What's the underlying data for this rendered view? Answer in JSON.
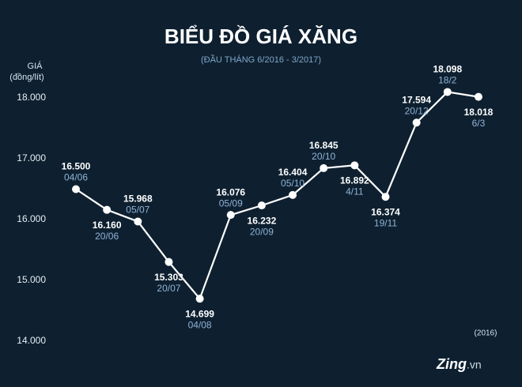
{
  "chart_data": {
    "type": "line",
    "title": "BIỂU ĐỒ GIÁ XĂNG",
    "subtitle": "(ĐẦU THÁNG 6/2016 - 3/2017)",
    "y_label": [
      "GIÁ",
      "(đồng/lít)"
    ],
    "annotation": "(2016)",
    "logo": [
      "Zing",
      ".vn"
    ],
    "categories": [
      "04/06",
      "20/06",
      "05/07",
      "20/07",
      "04/08",
      "05/09",
      "20/09",
      "05/10",
      "20/10",
      "4/11",
      "19/11",
      "20/12",
      "18/2",
      "6/3"
    ],
    "series": [
      {
        "color": "#ffffff",
        "values": [
          16500,
          16160,
          15968,
          15303,
          14699,
          16076,
          16232,
          16404,
          16845,
          16892,
          16374,
          17594,
          18098,
          18018
        ],
        "value_labels": [
          "16.500",
          "16.160",
          "15.968",
          "15.303",
          "14.699",
          "16.076",
          "16.232",
          "16.404",
          "16.845",
          "16.892",
          "16.374",
          "17.594",
          "18.098",
          "18.018"
        ]
      }
    ],
    "ylim": [
      14000,
      18500
    ],
    "yticks": [
      {
        "value": 14000,
        "label": "14.000"
      },
      {
        "value": 15000,
        "label": "15.000"
      },
      {
        "value": 16000,
        "label": "16.000"
      },
      {
        "value": 17000,
        "label": "17.000"
      },
      {
        "value": 18000,
        "label": "18.000"
      }
    ]
  }
}
